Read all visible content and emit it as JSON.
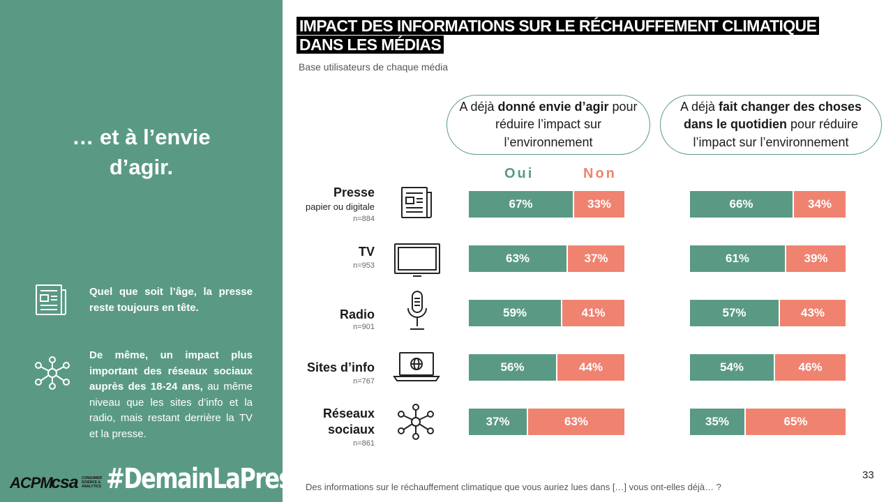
{
  "left_panel": {
    "hook": "… et à l’envie d’agir.",
    "note1_bold": "Quel que soit l’âge, la presse reste toujours en tête.",
    "note2_bold": "De même, un impact plus important des réseaux sociaux auprès des 18-24 ans,",
    "note2_rest": " au même niveau que les sites d’info et la radio, mais restant derrière la TV et la presse.",
    "note1_icon": "newspaper-icon",
    "note2_icon": "network-icon"
  },
  "logos": {
    "acpm": "ACPM",
    "csa": "csa",
    "csa_sub": "CONSUMER SCIENCE & ANALYTICS",
    "hashtag": "#DemainLaPresse"
  },
  "header": {
    "title_line1": "IMPACT DES INFORMATIONS SUR LE RÉCHAUFFEMENT CLIMATIQUE",
    "title_line2": "DANS LES MÉDIAS",
    "subtitle": "Base utilisateurs de chaque média"
  },
  "questions": {
    "q1_pre": "A déjà ",
    "q1_bold": "donné envie d’agir",
    "q1_post": " pour réduire l’impact sur l’environnement",
    "q2_pre": "A déjà ",
    "q2_bold": "fait changer des choses dans le quotidien",
    "q2_post": " pour réduire l’impact sur l’environnement"
  },
  "legend": {
    "oui": "Oui",
    "non": "Non"
  },
  "colors": {
    "oui": "#5a9a84",
    "non": "#f08270",
    "panel": "#5a9a84"
  },
  "chart_data": {
    "type": "bar",
    "stacked": true,
    "orientation": "horizontal",
    "categories": [
      "Presse",
      "TV",
      "Radio",
      "Sites d’info",
      "Réseaux sociaux"
    ],
    "media": [
      {
        "name": "Presse",
        "sub": "papier ou digitale",
        "n": "n=884",
        "icon": "newspaper-icon"
      },
      {
        "name": "TV",
        "sub": "",
        "n": "n=953",
        "icon": "tv-icon"
      },
      {
        "name": "Radio",
        "sub": "",
        "n": "n=901",
        "icon": "microphone-icon"
      },
      {
        "name": "Sites d’info",
        "sub": "",
        "n": "n=767",
        "icon": "laptop-globe-icon"
      },
      {
        "name": "Réseaux sociaux",
        "sub": "",
        "n": "n=861",
        "icon": "network-icon"
      }
    ],
    "panels": [
      {
        "question": "A déjà donné envie d’agir pour réduire l’impact sur l’environnement",
        "series": [
          {
            "name": "Oui",
            "values": [
              67,
              63,
              59,
              56,
              37
            ]
          },
          {
            "name": "Non",
            "values": [
              33,
              37,
              41,
              44,
              63
            ]
          }
        ]
      },
      {
        "question": "A déjà fait changer des choses dans le quotidien pour réduire l’impact sur l’environnement",
        "series": [
          {
            "name": "Oui",
            "values": [
              66,
              61,
              57,
              54,
              35
            ]
          },
          {
            "name": "Non",
            "values": [
              34,
              39,
              43,
              46,
              65
            ]
          }
        ]
      }
    ],
    "unit": "%"
  },
  "footer": {
    "question": "Des informations sur le réchauffement climatique que vous auriez lues dans […] vous ont-elles déjà… ?",
    "page": "33"
  }
}
